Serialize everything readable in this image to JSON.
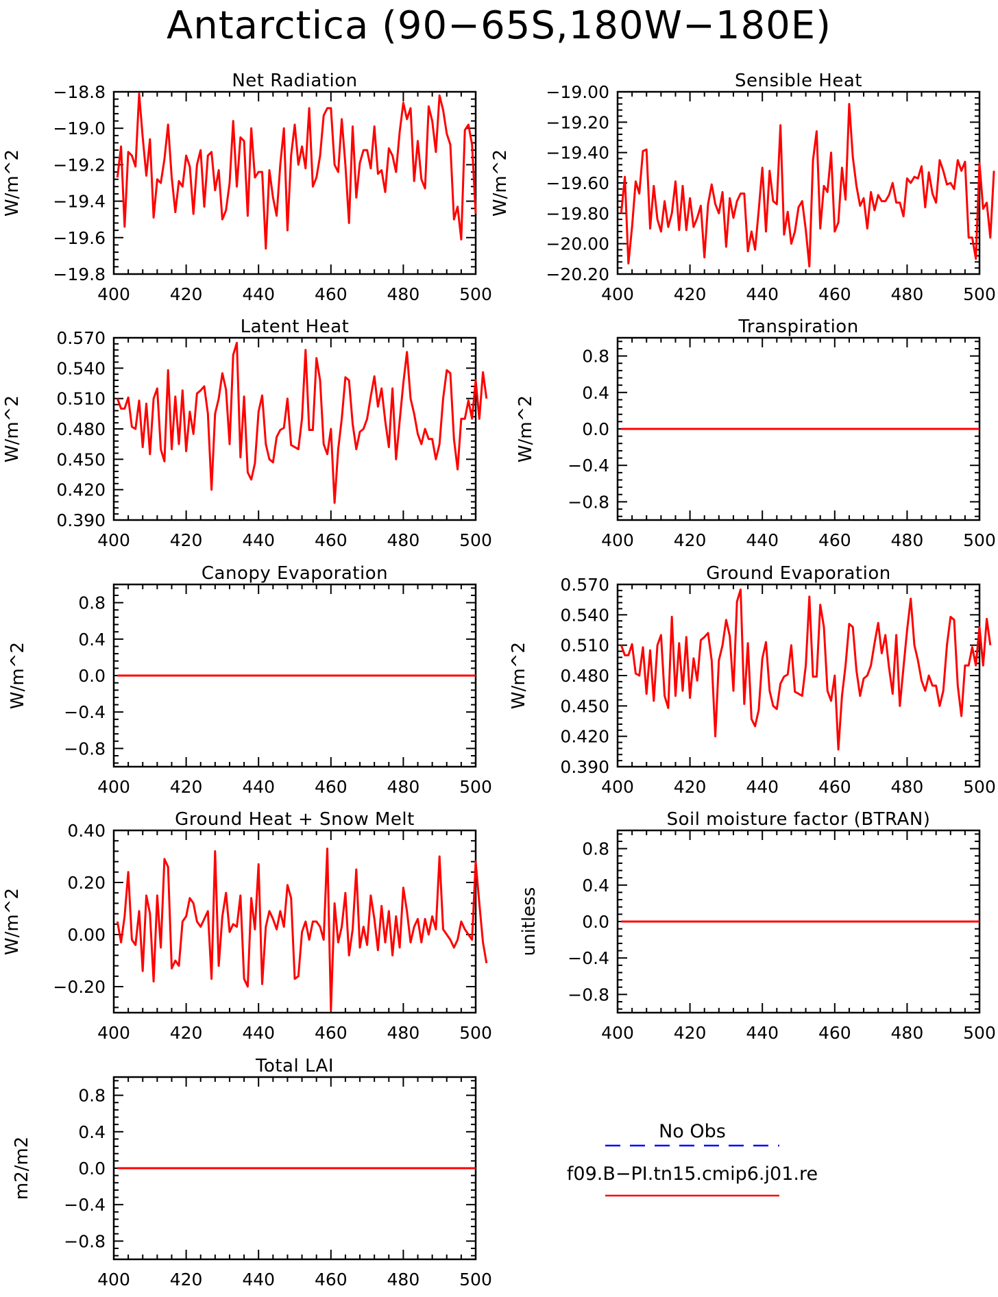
{
  "title": "Antarctica (90-65S,180W-180E)",
  "legend": {
    "obs_label": "No Obs",
    "obs_color": "#0000ff",
    "model_label": "f09.B-PI.tn15.cmip6.j01.re",
    "model_color": "#ff0000"
  },
  "chart_data": [
    {
      "id": "net-radiation",
      "type": "line",
      "title": "Net Radiation",
      "xlabel": "",
      "ylabel": "W/m^2",
      "xlim": [
        400,
        500
      ],
      "ylim": [
        -19.8,
        -18.8
      ],
      "xticks": [
        400,
        420,
        440,
        460,
        480,
        500
      ],
      "yticks": [
        -19.8,
        -19.6,
        -19.4,
        -19.2,
        -19.0,
        -18.8
      ],
      "ytick_labels": [
        "-19.8",
        "-19.6",
        "-19.4",
        "-19.2",
        "-19.0",
        "-18.8"
      ],
      "x_start": 401,
      "x_step": 1,
      "series": [
        {
          "values": [
            -19.27,
            -19.1,
            -19.54,
            -19.13,
            -19.15,
            -19.21,
            -18.81,
            -19.05,
            -19.26,
            -19.06,
            -19.49,
            -19.28,
            -19.3,
            -19.17,
            -18.98,
            -19.27,
            -19.46,
            -19.29,
            -19.32,
            -19.15,
            -19.21,
            -19.47,
            -19.2,
            -19.12,
            -19.43,
            -19.15,
            -19.13,
            -19.34,
            -19.23,
            -19.5,
            -19.45,
            -19.3,
            -18.96,
            -19.32,
            -19.05,
            -19.07,
            -19.48,
            -19.0,
            -19.27,
            -19.24,
            -19.24,
            -19.66,
            -19.23,
            -19.38,
            -19.48,
            -19.2,
            -19.0,
            -19.56,
            -19.15,
            -18.98,
            -19.2,
            -19.1,
            -19.22,
            -18.89,
            -19.32,
            -19.27,
            -19.15,
            -18.93,
            -18.89,
            -18.89,
            -19.2,
            -19.24,
            -18.95,
            -19.2,
            -19.52,
            -18.99,
            -19.38,
            -19.19,
            -19.12,
            -19.12,
            -19.22,
            -18.99,
            -19.25,
            -19.23,
            -19.35,
            -19.11,
            -19.15,
            -19.24,
            -19.02,
            -18.86,
            -18.95,
            -18.89,
            -19.29,
            -19.07,
            -19.28,
            -19.33,
            -18.88,
            -18.96,
            -19.13,
            -18.82,
            -18.9,
            -19.03,
            -19.09,
            -19.5,
            -19.43,
            -19.61,
            -19.01,
            -18.98,
            -19.09,
            -19.47
          ]
        }
      ]
    },
    {
      "id": "sensible-heat",
      "type": "line",
      "title": "Sensible Heat",
      "xlabel": "",
      "ylabel": "W/m^2",
      "xlim": [
        400,
        500
      ],
      "ylim": [
        -20.2,
        -19.0
      ],
      "xticks": [
        400,
        420,
        440,
        460,
        480,
        500
      ],
      "yticks": [
        -20.2,
        -20.0,
        -19.8,
        -19.6,
        -19.4,
        -19.2,
        -19.0
      ],
      "ytick_labels": [
        "-20.20",
        "-20.00",
        "-19.80",
        "-19.60",
        "-19.40",
        "-19.20",
        "-19.00"
      ],
      "x_start": 401,
      "x_step": 1,
      "series": [
        {
          "values": [
            -19.8,
            -19.56,
            -20.13,
            -19.89,
            -19.59,
            -19.67,
            -19.39,
            -19.38,
            -19.9,
            -19.62,
            -19.84,
            -19.92,
            -19.72,
            -19.89,
            -19.8,
            -19.59,
            -19.91,
            -19.62,
            -19.91,
            -19.7,
            -19.89,
            -19.83,
            -19.75,
            -20.09,
            -19.74,
            -19.61,
            -19.74,
            -19.8,
            -19.66,
            -20.02,
            -19.7,
            -19.83,
            -19.72,
            -19.67,
            -19.67,
            -20.05,
            -19.92,
            -20.04,
            -19.78,
            -19.5,
            -19.92,
            -19.52,
            -19.72,
            -19.74,
            -19.22,
            -19.94,
            -19.79,
            -20.0,
            -19.92,
            -19.76,
            -19.72,
            -19.91,
            -20.15,
            -19.45,
            -19.26,
            -19.9,
            -19.62,
            -19.66,
            -19.4,
            -19.92,
            -19.86,
            -19.5,
            -19.71,
            -19.08,
            -19.43,
            -19.62,
            -19.75,
            -19.7,
            -19.9,
            -19.66,
            -19.78,
            -19.68,
            -19.72,
            -19.72,
            -19.68,
            -19.6,
            -19.73,
            -19.73,
            -19.82,
            -19.57,
            -19.6,
            -19.56,
            -19.57,
            -19.49,
            -19.76,
            -19.53,
            -19.67,
            -19.73,
            -19.45,
            -19.52,
            -19.61,
            -19.6,
            -19.64,
            -19.45,
            -19.52,
            -19.46,
            -19.96,
            -19.96,
            -20.1,
            -19.47,
            -19.77,
            -19.73,
            -19.96,
            -19.52
          ]
        }
      ]
    },
    {
      "id": "latent-heat",
      "type": "line",
      "title": "Latent Heat",
      "xlabel": "",
      "ylabel": "W/m^2",
      "xlim": [
        400,
        500
      ],
      "ylim": [
        0.39,
        0.57
      ],
      "xticks": [
        400,
        420,
        440,
        460,
        480,
        500
      ],
      "yticks": [
        0.39,
        0.42,
        0.45,
        0.48,
        0.51,
        0.54,
        0.57
      ],
      "ytick_labels": [
        "0.390",
        "0.420",
        "0.450",
        "0.480",
        "0.510",
        "0.540",
        "0.570"
      ],
      "x_start": 401,
      "x_step": 1,
      "series": [
        {
          "values": [
            0.51,
            0.5,
            0.5,
            0.511,
            0.482,
            0.48,
            0.508,
            0.462,
            0.505,
            0.455,
            0.51,
            0.52,
            0.46,
            0.448,
            0.538,
            0.46,
            0.512,
            0.465,
            0.518,
            0.458,
            0.497,
            0.475,
            0.515,
            0.518,
            0.522,
            0.495,
            0.42,
            0.495,
            0.51,
            0.535,
            0.519,
            0.465,
            0.553,
            0.565,
            0.452,
            0.512,
            0.437,
            0.43,
            0.446,
            0.497,
            0.513,
            0.465,
            0.45,
            0.447,
            0.472,
            0.479,
            0.481,
            0.51,
            0.464,
            0.462,
            0.46,
            0.49,
            0.558,
            0.479,
            0.479,
            0.55,
            0.528,
            0.465,
            0.455,
            0.48,
            0.407,
            0.46,
            0.49,
            0.531,
            0.528,
            0.485,
            0.46,
            0.477,
            0.48,
            0.49,
            0.512,
            0.532,
            0.502,
            0.52,
            0.488,
            0.462,
            0.52,
            0.45,
            0.488,
            0.525,
            0.556,
            0.51,
            0.495,
            0.475,
            0.465,
            0.48,
            0.47,
            0.47,
            0.45,
            0.465,
            0.51,
            0.538,
            0.535,
            0.47,
            0.44,
            0.49,
            0.49,
            0.508,
            0.49,
            0.528,
            0.49,
            0.536,
            0.51
          ]
        }
      ]
    },
    {
      "id": "transpiration",
      "type": "line",
      "title": "Transpiration",
      "xlabel": "",
      "ylabel": "W/m^2",
      "xlim": [
        400,
        500
      ],
      "ylim": [
        -1.0,
        1.0
      ],
      "xticks": [
        400,
        420,
        440,
        460,
        480,
        500
      ],
      "yticks": [
        -0.8,
        -0.4,
        0.0,
        0.4,
        0.8
      ],
      "ytick_labels": [
        "-0.8",
        "-0.4",
        "0.0",
        "0.4",
        "0.8"
      ],
      "x_start": 401,
      "x_step": 99,
      "series": [
        {
          "values": [
            0.0,
            0.0
          ]
        }
      ]
    },
    {
      "id": "canopy-evaporation",
      "type": "line",
      "title": "Canopy Evaporation",
      "xlabel": "",
      "ylabel": "W/m^2",
      "xlim": [
        400,
        500
      ],
      "ylim": [
        -1.0,
        1.0
      ],
      "xticks": [
        400,
        420,
        440,
        460,
        480,
        500
      ],
      "yticks": [
        -0.8,
        -0.4,
        0.0,
        0.4,
        0.8
      ],
      "ytick_labels": [
        "-0.8",
        "-0.4",
        "0.0",
        "0.4",
        "0.8"
      ],
      "x_start": 401,
      "x_step": 99,
      "series": [
        {
          "values": [
            0.0,
            0.0
          ]
        }
      ]
    },
    {
      "id": "ground-evaporation",
      "type": "line",
      "title": "Ground Evaporation",
      "xlabel": "",
      "ylabel": "W/m^2",
      "xlim": [
        400,
        500
      ],
      "ylim": [
        0.39,
        0.57
      ],
      "xticks": [
        400,
        420,
        440,
        460,
        480,
        500
      ],
      "yticks": [
        0.39,
        0.42,
        0.45,
        0.48,
        0.51,
        0.54,
        0.57
      ],
      "ytick_labels": [
        "0.390",
        "0.420",
        "0.450",
        "0.480",
        "0.510",
        "0.540",
        "0.570"
      ],
      "x_start": 401,
      "x_step": 1,
      "series": [
        {
          "values": [
            0.51,
            0.5,
            0.5,
            0.511,
            0.482,
            0.48,
            0.508,
            0.462,
            0.505,
            0.455,
            0.51,
            0.52,
            0.46,
            0.448,
            0.538,
            0.46,
            0.512,
            0.465,
            0.518,
            0.458,
            0.497,
            0.475,
            0.515,
            0.518,
            0.522,
            0.495,
            0.42,
            0.495,
            0.51,
            0.535,
            0.519,
            0.465,
            0.553,
            0.565,
            0.452,
            0.512,
            0.437,
            0.43,
            0.446,
            0.497,
            0.513,
            0.465,
            0.45,
            0.447,
            0.472,
            0.479,
            0.481,
            0.51,
            0.464,
            0.462,
            0.46,
            0.49,
            0.558,
            0.479,
            0.479,
            0.55,
            0.528,
            0.465,
            0.455,
            0.48,
            0.407,
            0.46,
            0.49,
            0.531,
            0.528,
            0.485,
            0.46,
            0.477,
            0.48,
            0.49,
            0.512,
            0.532,
            0.502,
            0.52,
            0.488,
            0.462,
            0.52,
            0.45,
            0.488,
            0.525,
            0.556,
            0.51,
            0.495,
            0.475,
            0.465,
            0.48,
            0.47,
            0.47,
            0.45,
            0.465,
            0.51,
            0.538,
            0.535,
            0.47,
            0.44,
            0.49,
            0.49,
            0.508,
            0.49,
            0.528,
            0.49,
            0.536,
            0.51
          ]
        }
      ]
    },
    {
      "id": "ground-heat-snow-melt",
      "type": "line",
      "title": "Ground Heat + Snow Melt",
      "xlabel": "",
      "ylabel": "W/m^2",
      "xlim": [
        400,
        500
      ],
      "ylim": [
        -0.3,
        0.4
      ],
      "xticks": [
        400,
        420,
        440,
        460,
        480,
        500
      ],
      "yticks": [
        -0.2,
        0.0,
        0.2,
        0.4
      ],
      "ytick_labels": [
        "-0.20",
        "0.00",
        "0.20",
        "0.40"
      ],
      "x_start": 401,
      "x_step": 1,
      "series": [
        {
          "values": [
            0.05,
            -0.03,
            0.07,
            0.24,
            -0.02,
            -0.04,
            0.09,
            -0.14,
            0.15,
            0.08,
            -0.18,
            0.15,
            -0.05,
            0.29,
            0.26,
            -0.13,
            -0.1,
            -0.12,
            0.05,
            0.07,
            0.14,
            0.12,
            0.05,
            0.03,
            0.06,
            0.09,
            -0.17,
            0.32,
            -0.12,
            0.07,
            0.16,
            0.01,
            0.04,
            0.03,
            0.15,
            -0.17,
            -0.2,
            0.14,
            0.02,
            0.27,
            -0.19,
            0.03,
            0.09,
            0.06,
            0.02,
            0.09,
            0.03,
            0.19,
            0.14,
            -0.17,
            -0.16,
            0.01,
            0.05,
            -0.02,
            0.05,
            0.05,
            0.03,
            -0.02,
            0.33,
            -0.29,
            0.12,
            -0.03,
            0.03,
            0.16,
            -0.08,
            0.02,
            0.25,
            -0.05,
            0.03,
            -0.04,
            0.15,
            0.06,
            -0.06,
            0.11,
            -0.03,
            0.09,
            -0.08,
            0.07,
            -0.05,
            0.18,
            0.09,
            -0.03,
            0.03,
            0.06,
            -0.03,
            0.06,
            0.0,
            0.07,
            0.02,
            0.3,
            0.02,
            0.0,
            -0.02,
            -0.05,
            -0.02,
            0.05,
            0.02,
            0.0,
            -0.02,
            0.28,
            0.12,
            -0.03,
            -0.11
          ]
        }
      ]
    },
    {
      "id": "soil-moisture-factor",
      "type": "line",
      "title": "Soil moisture factor (BTRAN)",
      "xlabel": "",
      "ylabel": "unitless",
      "xlim": [
        400,
        500
      ],
      "ylim": [
        -1.0,
        1.0
      ],
      "xticks": [
        400,
        420,
        440,
        460,
        480,
        500
      ],
      "yticks": [
        -0.8,
        -0.4,
        0.0,
        0.4,
        0.8
      ],
      "ytick_labels": [
        "-0.8",
        "-0.4",
        "0.0",
        "0.4",
        "0.8"
      ],
      "x_start": 401,
      "x_step": 99,
      "series": [
        {
          "values": [
            0.0,
            0.0
          ]
        }
      ]
    },
    {
      "id": "total-lai",
      "type": "line",
      "title": "Total LAI",
      "xlabel": "",
      "ylabel": "m2/m2",
      "xlim": [
        400,
        500
      ],
      "ylim": [
        -1.0,
        1.0
      ],
      "xticks": [
        400,
        420,
        440,
        460,
        480,
        500
      ],
      "yticks": [
        -0.8,
        -0.4,
        0.0,
        0.4,
        0.8
      ],
      "ytick_labels": [
        "-0.8",
        "-0.4",
        "0.0",
        "0.4",
        "0.8"
      ],
      "x_start": 401,
      "x_step": 99,
      "series": [
        {
          "values": [
            0.0,
            0.0
          ]
        }
      ]
    }
  ]
}
